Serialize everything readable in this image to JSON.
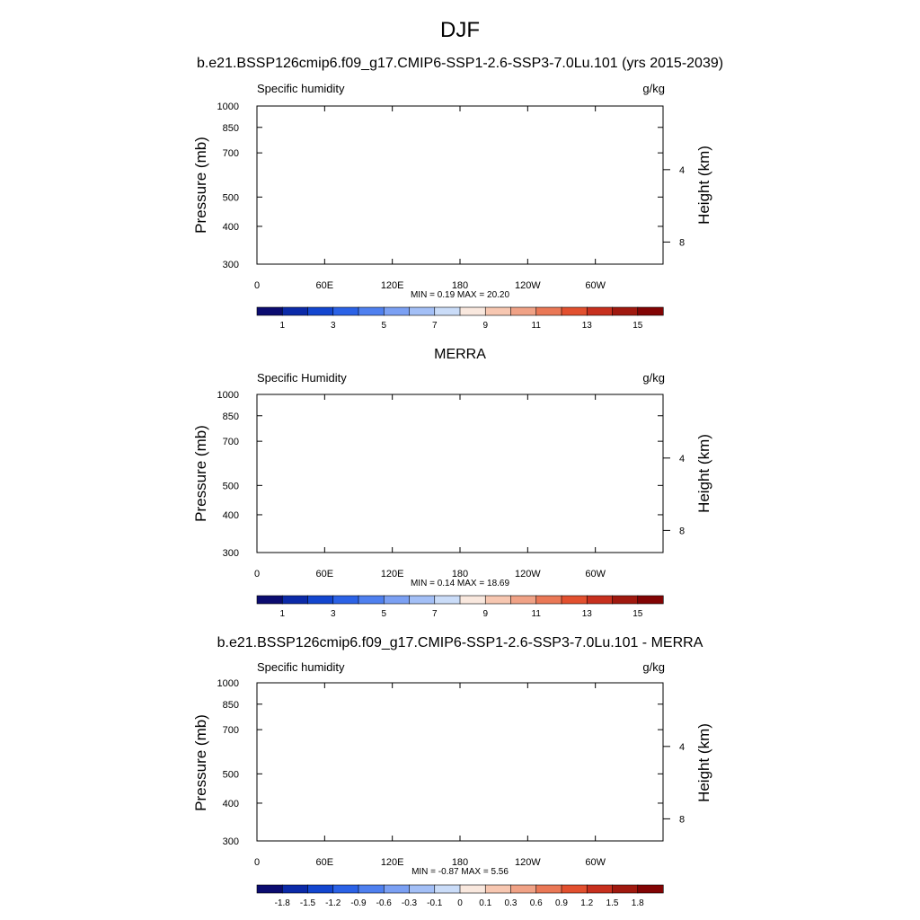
{
  "title": "DJF",
  "colors": {
    "main_scale": [
      "#0b0c70",
      "#0b2aa8",
      "#1346cf",
      "#2b62e6",
      "#4f80ef",
      "#7ba0f3",
      "#a3bff6",
      "#cadcf8",
      "#f9e8de",
      "#f7c7b1",
      "#f0a286",
      "#ea7856",
      "#e2502f",
      "#c7301e",
      "#a0190f",
      "#820404"
    ],
    "diff_scale": [
      "#0b0c70",
      "#0b2aa8",
      "#1346cf",
      "#2b62e6",
      "#4f80ef",
      "#7ba0f3",
      "#a3bff6",
      "#cadcf8",
      "#f9e8de",
      "#f7c7b1",
      "#f0a286",
      "#ea7856",
      "#e2502f",
      "#c7301e",
      "#a0190f",
      "#820404"
    ],
    "mask": "#000000"
  },
  "chart_data": [
    {
      "type": "heatmap",
      "title": "b.e21.BSSP126cmip6.f09_g17.CMIP6-SSP1-2.6-SSP3-7.0Lu.101 (yrs 2015-2039)",
      "left_label": "Specific humidity",
      "units": "g/kg",
      "ylabel": "Pressure (mb)",
      "right_axis_label": "Height (km)",
      "x_ticks": [
        "0",
        "60E",
        "120E",
        "180",
        "120W",
        "60W"
      ],
      "x_tick_lons": [
        0,
        60,
        120,
        180,
        240,
        300
      ],
      "xlim": [
        0,
        360
      ],
      "y_ticks": [
        300,
        400,
        500,
        700,
        850,
        1000
      ],
      "ylim": [
        1000,
        300
      ],
      "yscale": "log",
      "right_ticks": [
        8,
        4
      ],
      "levels": [
        1,
        2,
        3,
        4,
        5,
        6,
        7,
        8,
        9,
        10,
        11,
        12,
        13,
        14,
        15
      ],
      "colorbar_labels": [
        "1",
        "3",
        "5",
        "7",
        "9",
        "11",
        "13",
        "15"
      ],
      "colorbar_label_levels": [
        1,
        3,
        5,
        7,
        9,
        11,
        13,
        15
      ],
      "min_max_text": "MIN =   0.19  MAX =   20.20",
      "min": 0.19,
      "max": 20.2
    },
    {
      "type": "heatmap",
      "title": "MERRA",
      "left_label": "Specific Humidity",
      "units": "g/kg",
      "ylabel": "Pressure (mb)",
      "right_axis_label": "Height (km)",
      "x_ticks": [
        "0",
        "60E",
        "120E",
        "180",
        "120W",
        "60W"
      ],
      "x_tick_lons": [
        0,
        60,
        120,
        180,
        240,
        300
      ],
      "xlim": [
        0,
        360
      ],
      "y_ticks": [
        300,
        400,
        500,
        700,
        850,
        1000
      ],
      "ylim": [
        1000,
        300
      ],
      "yscale": "log",
      "right_ticks": [
        8,
        4
      ],
      "levels": [
        1,
        2,
        3,
        4,
        5,
        6,
        7,
        8,
        9,
        10,
        11,
        12,
        13,
        14,
        15
      ],
      "colorbar_labels": [
        "1",
        "3",
        "5",
        "7",
        "9",
        "11",
        "13",
        "15"
      ],
      "colorbar_label_levels": [
        1,
        3,
        5,
        7,
        9,
        11,
        13,
        15
      ],
      "min_max_text": "MIN =   0.14  MAX =   18.69",
      "min": 0.14,
      "max": 18.69
    },
    {
      "type": "heatmap",
      "title": "b.e21.BSSP126cmip6.f09_g17.CMIP6-SSP1-2.6-SSP3-7.0Lu.101 - MERRA",
      "left_label": "Specific humidity",
      "units": "g/kg",
      "ylabel": "Pressure (mb)",
      "right_axis_label": "Height (km)",
      "x_ticks": [
        "0",
        "60E",
        "120E",
        "180",
        "120W",
        "60W"
      ],
      "x_tick_lons": [
        0,
        60,
        120,
        180,
        240,
        300
      ],
      "xlim": [
        0,
        360
      ],
      "y_ticks": [
        300,
        400,
        500,
        700,
        850,
        1000
      ],
      "ylim": [
        1000,
        300
      ],
      "yscale": "log",
      "right_ticks": [
        8,
        4
      ],
      "levels": [
        -1.8,
        -1.5,
        -1.2,
        -0.9,
        -0.6,
        -0.3,
        -0.1,
        0,
        0.1,
        0.3,
        0.6,
        0.9,
        1.2,
        1.5,
        1.8
      ],
      "colorbar_labels": [
        "-1.8",
        "-1.5",
        "-1.2",
        "-0.9",
        "-0.6",
        "-0.3",
        "-0.1",
        "0",
        "0.1",
        "0.3",
        "0.6",
        "0.9",
        "1.2",
        "1.5",
        "1.8"
      ],
      "colorbar_label_levels": [
        -1.8,
        -1.5,
        -1.2,
        -0.9,
        -0.6,
        -0.3,
        -0.1,
        0,
        0.1,
        0.3,
        0.6,
        0.9,
        1.2,
        1.5,
        1.8
      ],
      "min_max_text": "MIN =  -0.87  MAX =   5.56",
      "min": -0.87,
      "max": 5.56
    }
  ]
}
